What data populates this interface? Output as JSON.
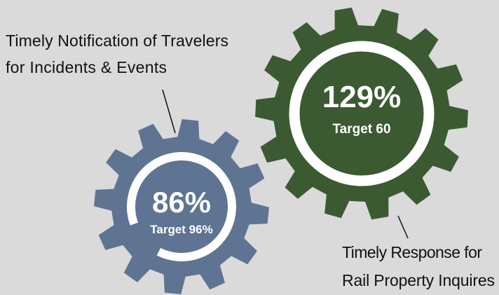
{
  "labels": {
    "top_left": [
      "Timely Notification of Travelers",
      "for Incidents & Events"
    ],
    "bottom_right": [
      "Timely Response for",
      "Rail Property Inquires"
    ]
  },
  "gears": [
    {
      "value": "86%",
      "target": "Target 96%"
    },
    {
      "value": "129%",
      "target": "Target 60"
    }
  ]
}
